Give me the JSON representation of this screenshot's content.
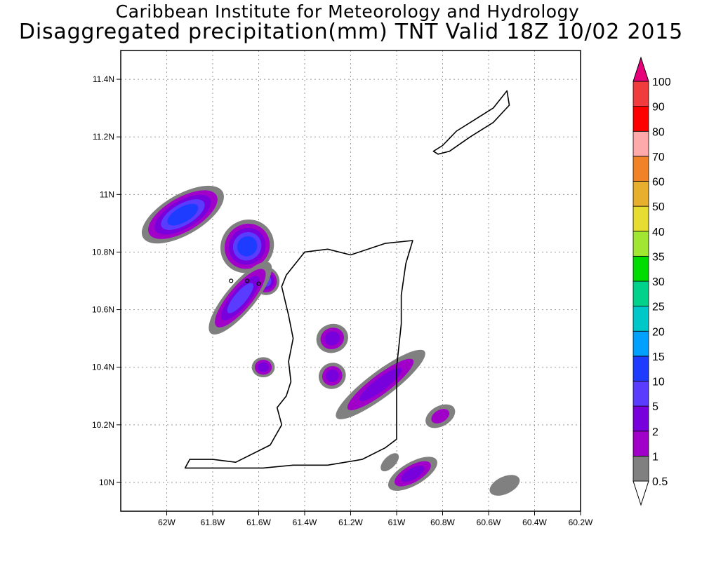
{
  "header": {
    "title_line1": "Caribbean Institute for Meteorology and Hydrology",
    "title_line2": "Disaggregated precipitation(mm) TNT Valid 18Z 10/02 2015"
  },
  "map": {
    "lon_range": [
      -62.2,
      -60.2
    ],
    "lat_range": [
      9.9,
      11.5
    ],
    "lon_ticks": [
      {
        "v": -62.0,
        "label": "62W"
      },
      {
        "v": -61.8,
        "label": "61.8W"
      },
      {
        "v": -61.6,
        "label": "61.6W"
      },
      {
        "v": -61.4,
        "label": "61.4W"
      },
      {
        "v": -61.2,
        "label": "61.2W"
      },
      {
        "v": -61.0,
        "label": "61W"
      },
      {
        "v": -60.8,
        "label": "60.8W"
      },
      {
        "v": -60.6,
        "label": "60.6W"
      },
      {
        "v": -60.4,
        "label": "60.4W"
      },
      {
        "v": -60.2,
        "label": "60.2W"
      }
    ],
    "lat_ticks": [
      {
        "v": 10.0,
        "label": "10N"
      },
      {
        "v": 10.2,
        "label": "10.2N"
      },
      {
        "v": 10.4,
        "label": "10.4N"
      },
      {
        "v": 10.6,
        "label": "10.6N"
      },
      {
        "v": 10.8,
        "label": "10.8N"
      },
      {
        "v": 11.0,
        "label": "11N"
      },
      {
        "v": 11.2,
        "label": "11.2N"
      },
      {
        "v": 11.4,
        "label": "11.4N"
      }
    ],
    "grid": true,
    "trinidad_outline": [
      [
        -61.92,
        10.05
      ],
      [
        -61.9,
        10.08
      ],
      [
        -61.8,
        10.08
      ],
      [
        -61.7,
        10.07
      ],
      [
        -61.55,
        10.13
      ],
      [
        -61.5,
        10.2
      ],
      [
        -61.52,
        10.26
      ],
      [
        -61.48,
        10.3
      ],
      [
        -61.46,
        10.35
      ],
      [
        -61.47,
        10.42
      ],
      [
        -61.45,
        10.5
      ],
      [
        -61.47,
        10.58
      ],
      [
        -61.5,
        10.68
      ],
      [
        -61.48,
        10.72
      ],
      [
        -61.4,
        10.8
      ],
      [
        -61.3,
        10.81
      ],
      [
        -61.2,
        10.79
      ],
      [
        -61.05,
        10.83
      ],
      [
        -60.93,
        10.84
      ],
      [
        -60.96,
        10.76
      ],
      [
        -60.98,
        10.65
      ],
      [
        -60.98,
        10.55
      ],
      [
        -61.0,
        10.4
      ],
      [
        -61.0,
        10.3
      ],
      [
        -61.0,
        10.15
      ],
      [
        -61.05,
        10.12
      ],
      [
        -61.15,
        10.08
      ],
      [
        -61.3,
        10.06
      ],
      [
        -61.45,
        10.06
      ],
      [
        -61.58,
        10.05
      ],
      [
        -61.7,
        10.05
      ],
      [
        -61.8,
        10.05
      ]
    ],
    "tobago_outline": [
      [
        -60.84,
        11.15
      ],
      [
        -60.8,
        11.17
      ],
      [
        -60.74,
        11.22
      ],
      [
        -60.66,
        11.26
      ],
      [
        -60.58,
        11.3
      ],
      [
        -60.52,
        11.36
      ],
      [
        -60.51,
        11.31
      ],
      [
        -60.58,
        11.25
      ],
      [
        -60.68,
        11.2
      ],
      [
        -60.77,
        11.15
      ],
      [
        -60.82,
        11.14
      ]
    ],
    "islets": [
      [
        -61.72,
        10.7
      ],
      [
        -61.65,
        10.7
      ],
      [
        -61.6,
        10.69
      ]
    ],
    "precip_cells": [
      {
        "lon": -61.93,
        "lat": 10.93,
        "rx": 0.2,
        "ry": 0.07,
        "angle": 30,
        "max_mm": 10
      },
      {
        "lon": -61.65,
        "lat": 10.82,
        "rx": 0.12,
        "ry": 0.09,
        "angle": 45,
        "max_mm": 10
      },
      {
        "lon": -61.57,
        "lat": 10.7,
        "rx": 0.06,
        "ry": 0.05,
        "angle": 30,
        "max_mm": 5
      },
      {
        "lon": -61.68,
        "lat": 10.64,
        "rx": 0.2,
        "ry": 0.05,
        "angle": 50,
        "max_mm": 5
      },
      {
        "lon": -61.58,
        "lat": 10.4,
        "rx": 0.05,
        "ry": 0.035,
        "angle": 0,
        "max_mm": 2
      },
      {
        "lon": -61.28,
        "lat": 10.5,
        "rx": 0.07,
        "ry": 0.05,
        "angle": 20,
        "max_mm": 2
      },
      {
        "lon": -61.07,
        "lat": 10.34,
        "rx": 0.24,
        "ry": 0.045,
        "angle": 37,
        "max_mm": 2
      },
      {
        "lon": -61.28,
        "lat": 10.37,
        "rx": 0.06,
        "ry": 0.045,
        "angle": 30,
        "max_mm": 2
      },
      {
        "lon": -60.81,
        "lat": 10.23,
        "rx": 0.07,
        "ry": 0.035,
        "angle": 30,
        "max_mm": 1
      },
      {
        "lon": -60.93,
        "lat": 10.03,
        "rx": 0.12,
        "ry": 0.04,
        "angle": 30,
        "max_mm": 2
      },
      {
        "lon": -61.03,
        "lat": 10.07,
        "rx": 0.05,
        "ry": 0.02,
        "angle": 45,
        "max_mm": 0.5
      },
      {
        "lon": -60.53,
        "lat": 9.99,
        "rx": 0.07,
        "ry": 0.03,
        "angle": 25,
        "max_mm": 0.5
      }
    ]
  },
  "colorbar": {
    "levels": [
      "0.5",
      "1",
      "2",
      "5",
      "10",
      "15",
      "20",
      "25",
      "30",
      "35",
      "40",
      "50",
      "60",
      "70",
      "80",
      "90",
      "100"
    ],
    "colors": [
      "#808080",
      "#a000c8",
      "#7800dc",
      "#5a3cff",
      "#1e3cff",
      "#00a0ff",
      "#00c8c8",
      "#00d28c",
      "#00dc00",
      "#a0e632",
      "#e6dc32",
      "#e6af2d",
      "#f08228",
      "#ffaaaa",
      "#ff0000",
      "#f03c3c",
      "#ff0a8c"
    ],
    "under_color": "#ffffff",
    "over_color": "#e6007a"
  }
}
